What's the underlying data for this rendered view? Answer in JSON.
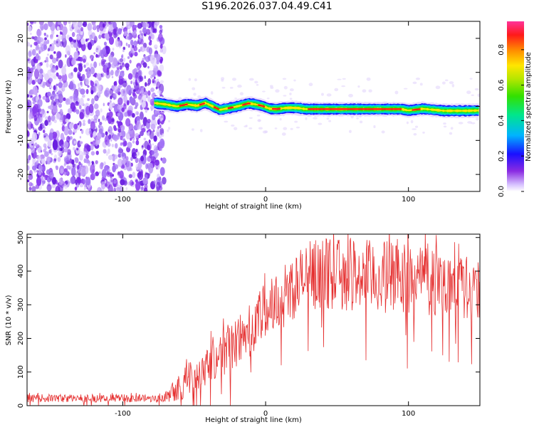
{
  "title": "S196.2026.037.04.49.C41",
  "chart_data": [
    {
      "type": "heatmap",
      "xlabel": "Height of straight line (km)",
      "ylabel": "Frequency (Hz)",
      "xlim": [
        -167,
        150
      ],
      "ylim": [
        -25,
        25
      ],
      "xticks": [
        -100,
        0,
        100
      ],
      "yticks": [
        -20,
        -10,
        0,
        10,
        20
      ],
      "noise_region_x": [
        -167,
        -78
      ],
      "signal_track": {
        "x": [
          -78,
          -70,
          -62,
          -55,
          -48,
          -42,
          -37,
          -32,
          -27,
          -22,
          -17,
          -12,
          -7,
          -2,
          3,
          8,
          13,
          18,
          23,
          28,
          35,
          50,
          70,
          95,
          100,
          110,
          125,
          140,
          150
        ],
        "freq": [
          1.0,
          0.6,
          0.0,
          0.6,
          0.2,
          1.0,
          0.0,
          -1.0,
          -0.6,
          -0.2,
          0.3,
          0.9,
          0.6,
          0.1,
          -0.7,
          -0.8,
          -0.5,
          -0.4,
          -0.5,
          -0.8,
          -0.8,
          -0.8,
          -0.8,
          -0.8,
          -1.2,
          -0.7,
          -1.3,
          -1.3,
          -1.2
        ]
      },
      "colorbar": {
        "label": "Normalized spectral amplitude",
        "ticks": [
          0.0,
          0.2,
          0.4,
          0.6,
          0.8
        ],
        "range": [
          0,
          0.96
        ]
      }
    },
    {
      "type": "line",
      "xlabel": "Height of straight line (km)",
      "ylabel": "SNR (10 * v/v)",
      "xlim": [
        -167,
        150
      ],
      "ylim": [
        0,
        510
      ],
      "xticks": [
        -100,
        0,
        100
      ],
      "yticks": [
        0,
        100,
        200,
        300,
        400,
        500
      ],
      "color": "#e53030",
      "envelope": {
        "x": [
          -167,
          -75,
          -70,
          -60,
          -50,
          -40,
          -30,
          -20,
          -10,
          0,
          10,
          20,
          30,
          40,
          50,
          60,
          70,
          80,
          90,
          100,
          110,
          120,
          130,
          140,
          150
        ],
        "mean": [
          22,
          22,
          35,
          60,
          90,
          130,
          160,
          190,
          230,
          280,
          320,
          355,
          385,
          395,
          390,
          390,
          385,
          380,
          385,
          385,
          380,
          370,
          360,
          350,
          340
        ],
        "spread": [
          12,
          12,
          25,
          45,
          55,
          65,
          75,
          80,
          85,
          90,
          95,
          100,
          105,
          105,
          105,
          110,
          110,
          110,
          110,
          115,
          110,
          105,
          100,
          95,
          90
        ]
      }
    }
  ]
}
